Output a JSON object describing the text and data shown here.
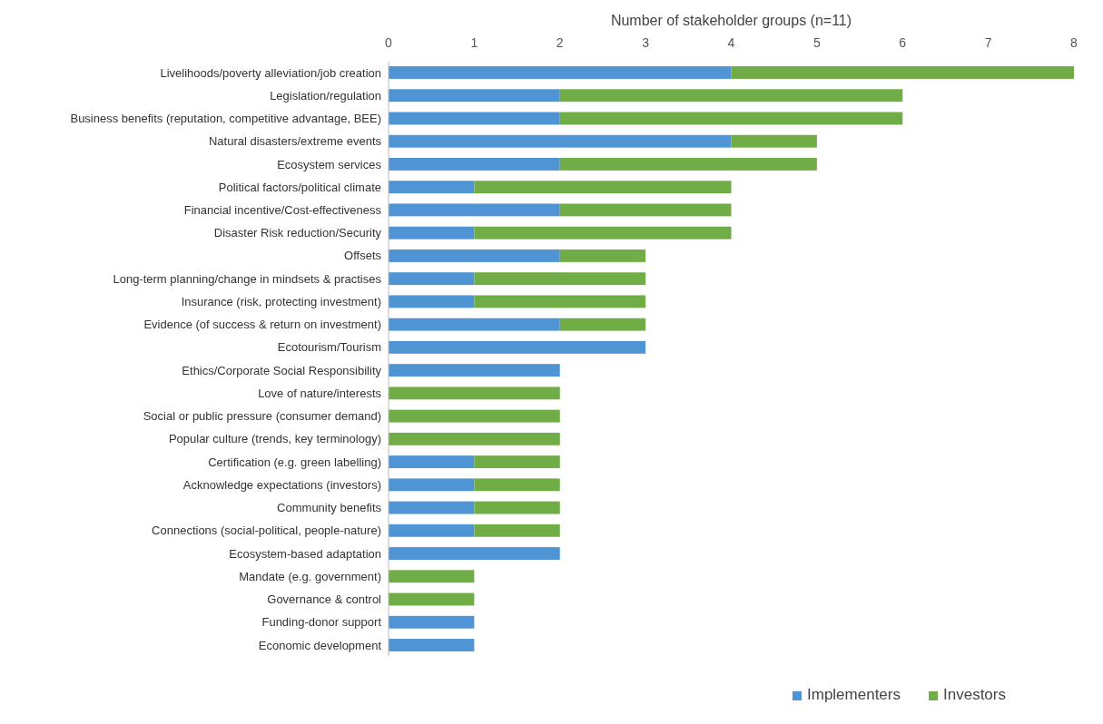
{
  "chart_data": {
    "type": "bar",
    "orientation": "horizontal",
    "stacked": true,
    "xlabel": "Number of stakeholder groups (n=11)",
    "categories": [
      "Livelihoods/poverty alleviation/job creation",
      "Legislation/regulation",
      "Business benefits (reputation, competitive advantage, BEE)",
      "Natural disasters/extreme events",
      "Ecosystem services",
      "Political factors/political climate",
      "Financial incentive/Cost-effectiveness",
      "Disaster Risk reduction/Security",
      "Offsets",
      "Long-term planning/change in mindsets & practises",
      "Insurance (risk, protecting investment)",
      "Evidence (of success & return on investment)",
      "Ecotourism/Tourism",
      "Ethics/Corporate Social Responsibility",
      "Love of nature/interests",
      "Social or public pressure (consumer demand)",
      "Popular culture (trends, key terminology)",
      "Certification (e.g. green labelling)",
      "Acknowledge expectations (investors)",
      "Community benefits",
      "Connections (social-political, people-nature)",
      "Ecosystem-based adaptation",
      "Mandate (e.g. government)",
      "Governance & control",
      "Funding-donor support",
      "Economic development"
    ],
    "series": [
      {
        "name": "Implementers",
        "color": "#4f94d4",
        "values": [
          4,
          2,
          2,
          4,
          2,
          1,
          2,
          1,
          2,
          1,
          1,
          2,
          3,
          2,
          0,
          0,
          0,
          1,
          1,
          1,
          1,
          2,
          0,
          0,
          1,
          1
        ]
      },
      {
        "name": "Investors",
        "color": "#70ad47",
        "values": [
          4,
          4,
          4,
          1,
          3,
          3,
          2,
          3,
          1,
          2,
          2,
          1,
          0,
          0,
          2,
          2,
          2,
          1,
          1,
          1,
          1,
          0,
          1,
          1,
          0,
          0
        ]
      }
    ],
    "xlim": [
      0,
      8
    ],
    "xticks": [
      0,
      1,
      2,
      3,
      4,
      5,
      6,
      7,
      8
    ],
    "grid": false,
    "legend": "bottom right"
  }
}
